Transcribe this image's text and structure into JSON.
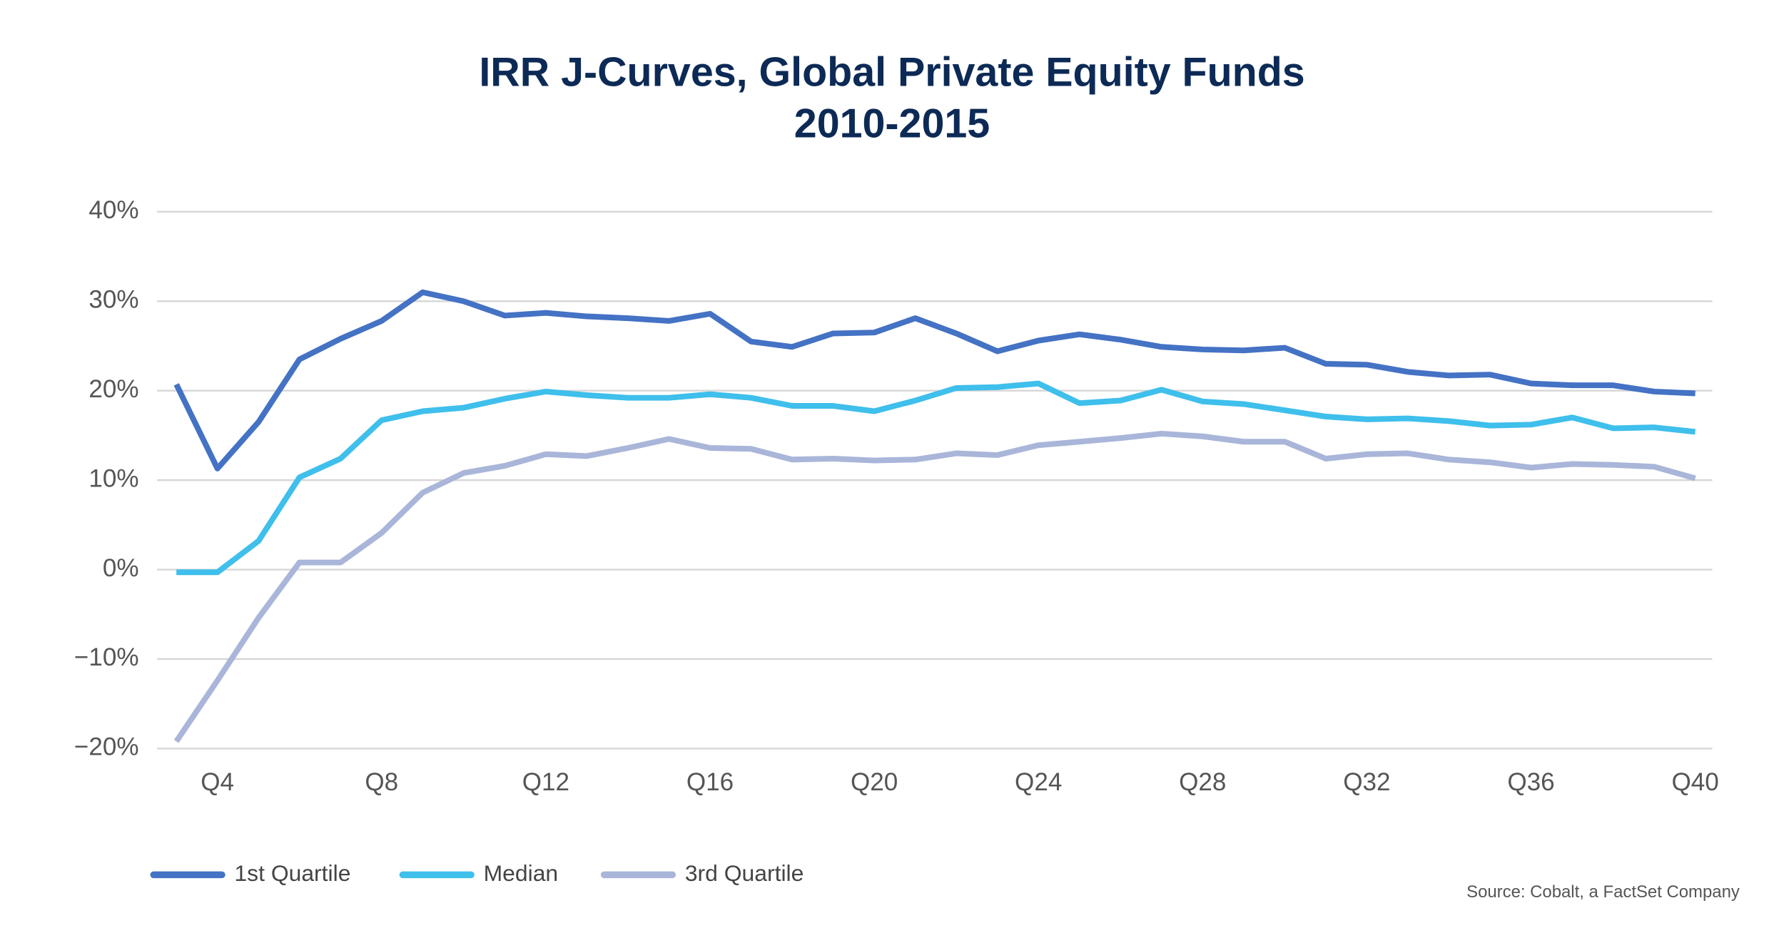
{
  "chart_data": {
    "type": "line",
    "title": "IRR J-Curves, Global Private Equity Funds",
    "subtitle": "2010-2015",
    "source": "Source: Cobalt, a FactSet Company",
    "categories": [
      null,
      "Q4",
      null,
      null,
      null,
      "Q8",
      null,
      null,
      null,
      "Q12",
      null,
      null,
      null,
      "Q16",
      null,
      null,
      null,
      "Q20",
      null,
      null,
      null,
      "Q24",
      null,
      null,
      null,
      "Q28",
      null,
      null,
      null,
      "Q32",
      null,
      null,
      null,
      "Q36",
      null,
      null,
      null,
      "Q40"
    ],
    "series": [
      {
        "name": "1st Quartile",
        "color": "#4472c4",
        "values": [
          20.7,
          11.3,
          16.5,
          23.5,
          25.8,
          27.8,
          31.0,
          30.0,
          28.4,
          28.7,
          28.3,
          28.1,
          27.8,
          28.6,
          25.5,
          24.9,
          26.4,
          26.5,
          28.1,
          26.4,
          24.4,
          25.6,
          26.3,
          25.7,
          24.9,
          24.6,
          24.5,
          24.8,
          23.0,
          22.9,
          22.1,
          21.7,
          21.8,
          20.8,
          20.6,
          20.6,
          19.9,
          19.7
        ]
      },
      {
        "name": "Median",
        "color": "#3fbfeb",
        "values": [
          -0.3,
          -0.3,
          3.2,
          10.3,
          12.4,
          16.7,
          17.7,
          18.1,
          19.1,
          19.9,
          19.5,
          19.2,
          19.2,
          19.6,
          19.2,
          18.3,
          18.3,
          17.7,
          18.9,
          20.3,
          20.4,
          20.8,
          18.6,
          18.9,
          20.1,
          18.8,
          18.5,
          17.8,
          17.1,
          16.8,
          16.9,
          16.6,
          16.1,
          16.2,
          17.0,
          15.8,
          15.9,
          15.4
        ]
      },
      {
        "name": "3rd Quartile",
        "color": "#a9b6d9",
        "values": [
          -19.2,
          -12.4,
          -5.4,
          0.8,
          0.8,
          4.1,
          8.6,
          10.8,
          11.6,
          12.9,
          12.7,
          13.6,
          14.6,
          13.6,
          13.5,
          12.3,
          12.4,
          12.2,
          12.3,
          13.0,
          12.8,
          13.9,
          14.3,
          14.7,
          15.2,
          14.9,
          14.3,
          14.3,
          12.4,
          12.9,
          13.0,
          12.3,
          12.0,
          11.4,
          11.8,
          11.7,
          11.5,
          10.2
        ]
      }
    ],
    "ylim": [
      -20,
      40
    ],
    "yticks": [
      {
        "value": -20,
        "label": "−20%"
      },
      {
        "value": -10,
        "label": "−10%"
      },
      {
        "value": 0,
        "label": "0%"
      },
      {
        "value": 10,
        "label": "10%"
      },
      {
        "value": 20,
        "label": "20%"
      },
      {
        "value": 30,
        "label": "30%"
      },
      {
        "value": 40,
        "label": "40%"
      }
    ],
    "grid": true
  }
}
